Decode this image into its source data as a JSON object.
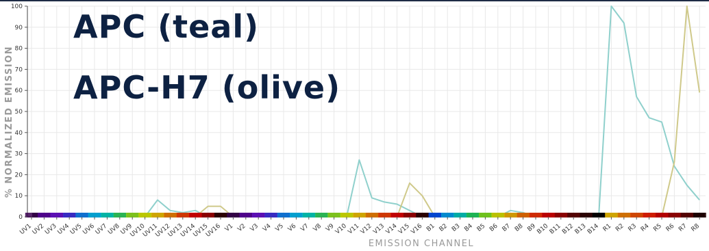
{
  "overlay": {
    "line1": "APC (teal)",
    "line2": "APC-H7 (olive)"
  },
  "chart_data": {
    "type": "line",
    "xlabel": "EMISSION CHANNEL",
    "ylabel": "% NORMALIZED EMISSION",
    "ylim": [
      0,
      100
    ],
    "yticks": [
      0,
      10,
      20,
      30,
      40,
      50,
      60,
      70,
      80,
      90,
      100
    ],
    "grid": true,
    "categories": [
      "UV1",
      "UV2",
      "UV3",
      "UV4",
      "UV5",
      "UV6",
      "UV7",
      "UV8",
      "UV9",
      "UV10",
      "UV11",
      "UV12",
      "UV13",
      "UV14",
      "UV15",
      "UV16",
      "V1",
      "V2",
      "V3",
      "V4",
      "V5",
      "V6",
      "V7",
      "V8",
      "V9",
      "V10",
      "V11",
      "V12",
      "V13",
      "V14",
      "V15",
      "V16",
      "B1",
      "B2",
      "B3",
      "B4",
      "B5",
      "B6",
      "B7",
      "B8",
      "B9",
      "B10",
      "B11",
      "B12",
      "B13",
      "B14",
      "R1",
      "R2",
      "R3",
      "R4",
      "R5",
      "R6",
      "R7",
      "R8"
    ],
    "series": [
      {
        "color": "#8fd0cc",
        "values": [
          0,
          0,
          0,
          0,
          0,
          0,
          0,
          0,
          0,
          0,
          8,
          3,
          2,
          3,
          0,
          0,
          0,
          0,
          0,
          0,
          0,
          0,
          0,
          0,
          0,
          0,
          27,
          9,
          7,
          6,
          3,
          0,
          0,
          0,
          0,
          0,
          0,
          0,
          3,
          2,
          0,
          0,
          0,
          0,
          0,
          0,
          100,
          92,
          57,
          47,
          45,
          24,
          15,
          8
        ]
      },
      {
        "color": "#cfc98a",
        "values": [
          0,
          0,
          0,
          0,
          0,
          0,
          0,
          0,
          0,
          0,
          0,
          0,
          0,
          0,
          5,
          5,
          0,
          0,
          0,
          0,
          0,
          0,
          0,
          0,
          0,
          0,
          0,
          0,
          0,
          0,
          16,
          10,
          0,
          0,
          0,
          0,
          0,
          0,
          0,
          0,
          0,
          0,
          0,
          0,
          0,
          0,
          0,
          0,
          0,
          0,
          0,
          26,
          100,
          59
        ]
      }
    ],
    "band_colors": [
      "#3a0050",
      "#5a00a0",
      "#6a10d0",
      "#4030e0",
      "#1080f0",
      "#00b8f0",
      "#00d0c0",
      "#30d060",
      "#90e020",
      "#d8e800",
      "#f0c000",
      "#f08000",
      "#f04000",
      "#e00000",
      "#a00000",
      "#300000",
      "#3a0050",
      "#5a00a0",
      "#6a10d0",
      "#4030e0",
      "#1080f0",
      "#00b8f0",
      "#00d0c0",
      "#30d060",
      "#90e020",
      "#d8e800",
      "#f0c000",
      "#f08000",
      "#f04000",
      "#e00000",
      "#a00000",
      "#300000",
      "#0050f0",
      "#00a0f0",
      "#00c8c0",
      "#20d060",
      "#80e020",
      "#d8e000",
      "#f0b000",
      "#f07000",
      "#f03000",
      "#d80000",
      "#a00000",
      "#600000",
      "#300000",
      "#000000",
      "#f0c000",
      "#f08000",
      "#f05000",
      "#f02000",
      "#d00000",
      "#a00000",
      "#600000",
      "#200000"
    ]
  }
}
